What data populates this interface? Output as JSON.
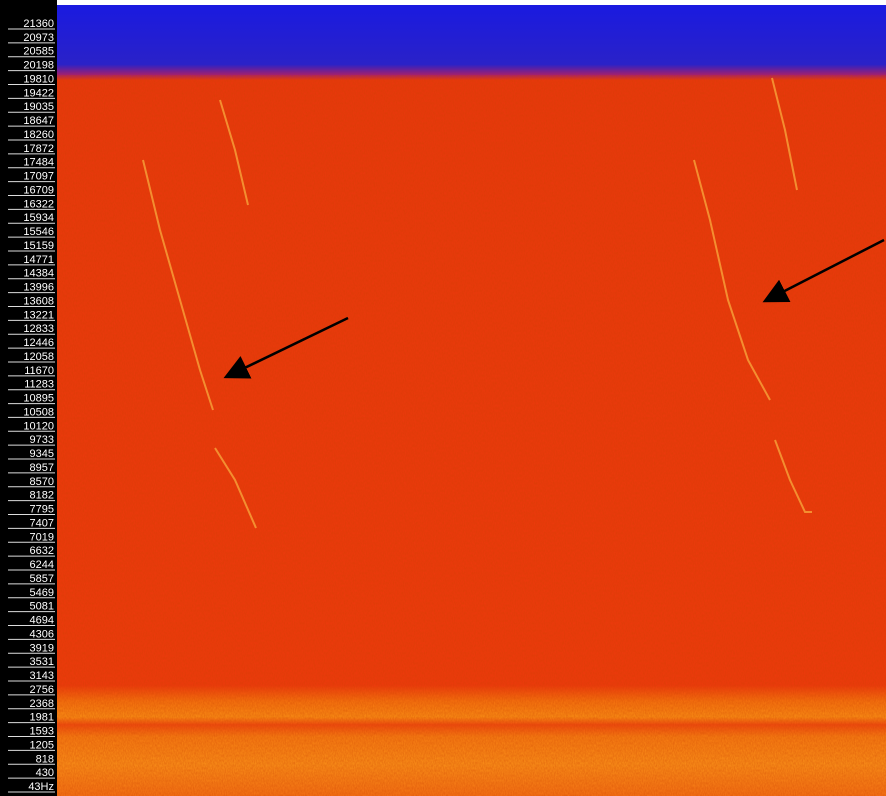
{
  "frequency_labels": [
    "21360",
    "20973",
    "20585",
    "20198",
    "19810",
    "19422",
    "19035",
    "18647",
    "18260",
    "17872",
    "17484",
    "17097",
    "16709",
    "16322",
    "15934",
    "15546",
    "15159",
    "14771",
    "14384",
    "13996",
    "13608",
    "13221",
    "12833",
    "12446",
    "12058",
    "11670",
    "11283",
    "10895",
    "10508",
    "10120",
    "9733",
    "9345",
    "8957",
    "8570",
    "8182",
    "7795",
    "7407",
    "7019",
    "6632",
    "6244",
    "5857",
    "5469",
    "5081",
    "4694",
    "4306",
    "3919",
    "3531",
    "3143",
    "2756",
    "2368",
    "1981",
    "1593",
    "1205",
    "818",
    "430",
    "43Hz"
  ]
}
